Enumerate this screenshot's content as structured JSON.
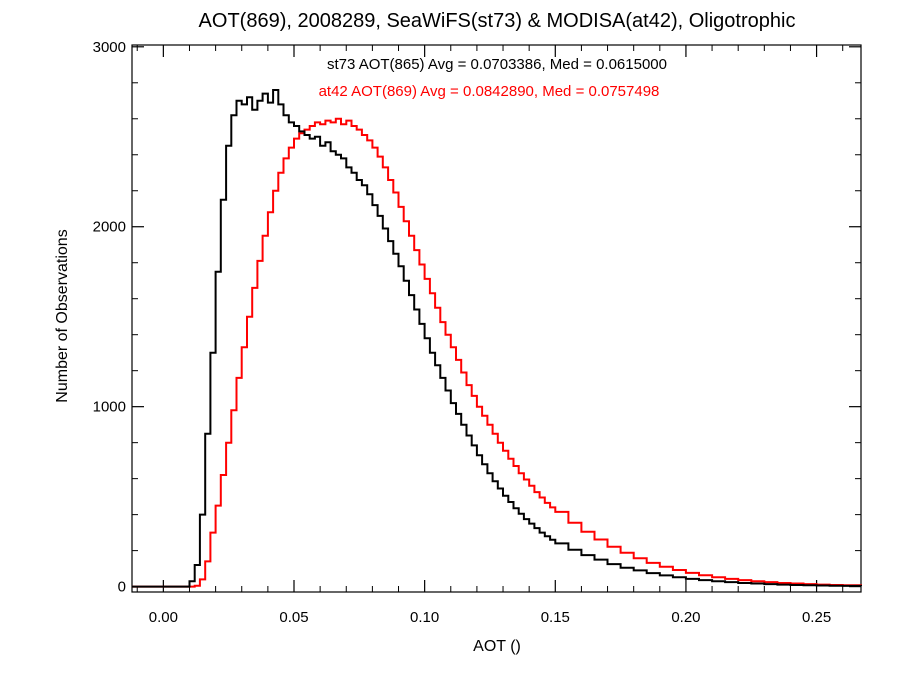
{
  "chart_data": {
    "type": "line",
    "step": true,
    "title": "AOT(869), 2008289, SeaWiFS(st73) & MODISA(at42), Oligotrophic",
    "xlabel": "AOT ()",
    "ylabel": "Number of Observations",
    "xlim": [
      -0.012,
      0.267
    ],
    "ylim": [
      -30,
      3010
    ],
    "xticks": [
      0.0,
      0.05,
      0.1,
      0.15,
      0.2,
      0.25
    ],
    "xtick_labels": [
      "0.00",
      "0.05",
      "0.10",
      "0.15",
      "0.20",
      "0.25"
    ],
    "yticks": [
      0,
      1000,
      2000,
      3000
    ],
    "ytick_labels": [
      "0",
      "1000",
      "2000",
      "3000"
    ],
    "grid": false,
    "annotations": [
      {
        "text": "st73 AOT(865) Avg = 0.0703386, Med = 0.0615000",
        "color": "#000000"
      },
      {
        "text": "at42 AOT(869) Avg = 0.0842890, Med = 0.0757498",
        "color": "#ff0000"
      }
    ],
    "series": [
      {
        "color": "#000000",
        "points": [
          [
            -0.012,
            0
          ],
          [
            0.008,
            0
          ],
          [
            0.01,
            30
          ],
          [
            0.012,
            120
          ],
          [
            0.014,
            400
          ],
          [
            0.016,
            850
          ],
          [
            0.018,
            1300
          ],
          [
            0.02,
            1750
          ],
          [
            0.022,
            2150
          ],
          [
            0.024,
            2450
          ],
          [
            0.026,
            2620
          ],
          [
            0.028,
            2700
          ],
          [
            0.03,
            2680
          ],
          [
            0.032,
            2720
          ],
          [
            0.034,
            2650
          ],
          [
            0.036,
            2700
          ],
          [
            0.038,
            2740
          ],
          [
            0.04,
            2690
          ],
          [
            0.042,
            2760
          ],
          [
            0.044,
            2680
          ],
          [
            0.046,
            2620
          ],
          [
            0.048,
            2580
          ],
          [
            0.05,
            2560
          ],
          [
            0.052,
            2530
          ],
          [
            0.054,
            2510
          ],
          [
            0.056,
            2490
          ],
          [
            0.058,
            2500
          ],
          [
            0.06,
            2450
          ],
          [
            0.062,
            2470
          ],
          [
            0.064,
            2420
          ],
          [
            0.066,
            2400
          ],
          [
            0.068,
            2380
          ],
          [
            0.07,
            2330
          ],
          [
            0.072,
            2300
          ],
          [
            0.074,
            2260
          ],
          [
            0.076,
            2230
          ],
          [
            0.078,
            2180
          ],
          [
            0.08,
            2120
          ],
          [
            0.082,
            2060
          ],
          [
            0.084,
            1990
          ],
          [
            0.086,
            1920
          ],
          [
            0.088,
            1850
          ],
          [
            0.09,
            1780
          ],
          [
            0.092,
            1700
          ],
          [
            0.094,
            1620
          ],
          [
            0.096,
            1540
          ],
          [
            0.098,
            1460
          ],
          [
            0.1,
            1380
          ],
          [
            0.102,
            1300
          ],
          [
            0.104,
            1230
          ],
          [
            0.106,
            1160
          ],
          [
            0.108,
            1090
          ],
          [
            0.11,
            1020
          ],
          [
            0.112,
            960
          ],
          [
            0.114,
            900
          ],
          [
            0.116,
            840
          ],
          [
            0.118,
            785
          ],
          [
            0.12,
            730
          ],
          [
            0.122,
            680
          ],
          [
            0.124,
            630
          ],
          [
            0.126,
            585
          ],
          [
            0.128,
            545
          ],
          [
            0.13,
            505
          ],
          [
            0.132,
            470
          ],
          [
            0.134,
            435
          ],
          [
            0.136,
            405
          ],
          [
            0.138,
            375
          ],
          [
            0.14,
            350
          ],
          [
            0.142,
            325
          ],
          [
            0.144,
            300
          ],
          [
            0.146,
            280
          ],
          [
            0.148,
            260
          ],
          [
            0.15,
            240
          ],
          [
            0.155,
            205
          ],
          [
            0.16,
            175
          ],
          [
            0.165,
            150
          ],
          [
            0.17,
            125
          ],
          [
            0.175,
            105
          ],
          [
            0.18,
            90
          ],
          [
            0.185,
            75
          ],
          [
            0.19,
            62
          ],
          [
            0.195,
            52
          ],
          [
            0.2,
            43
          ],
          [
            0.205,
            36
          ],
          [
            0.21,
            30
          ],
          [
            0.215,
            25
          ],
          [
            0.22,
            20
          ],
          [
            0.225,
            17
          ],
          [
            0.23,
            14
          ],
          [
            0.235,
            11
          ],
          [
            0.24,
            9
          ],
          [
            0.245,
            7
          ],
          [
            0.25,
            6
          ],
          [
            0.255,
            5
          ],
          [
            0.26,
            4
          ],
          [
            0.267,
            3
          ]
        ]
      },
      {
        "color": "#ff0000",
        "points": [
          [
            -0.012,
            0
          ],
          [
            0.01,
            0
          ],
          [
            0.012,
            5
          ],
          [
            0.014,
            40
          ],
          [
            0.016,
            140
          ],
          [
            0.018,
            300
          ],
          [
            0.02,
            450
          ],
          [
            0.022,
            620
          ],
          [
            0.024,
            800
          ],
          [
            0.026,
            980
          ],
          [
            0.028,
            1160
          ],
          [
            0.03,
            1330
          ],
          [
            0.032,
            1500
          ],
          [
            0.034,
            1660
          ],
          [
            0.036,
            1810
          ],
          [
            0.038,
            1950
          ],
          [
            0.04,
            2080
          ],
          [
            0.042,
            2200
          ],
          [
            0.044,
            2300
          ],
          [
            0.046,
            2380
          ],
          [
            0.048,
            2440
          ],
          [
            0.05,
            2490
          ],
          [
            0.052,
            2520
          ],
          [
            0.054,
            2540
          ],
          [
            0.056,
            2560
          ],
          [
            0.058,
            2580
          ],
          [
            0.06,
            2570
          ],
          [
            0.062,
            2590
          ],
          [
            0.064,
            2580
          ],
          [
            0.066,
            2600
          ],
          [
            0.068,
            2570
          ],
          [
            0.07,
            2590
          ],
          [
            0.072,
            2560
          ],
          [
            0.074,
            2540
          ],
          [
            0.076,
            2510
          ],
          [
            0.078,
            2480
          ],
          [
            0.08,
            2440
          ],
          [
            0.082,
            2390
          ],
          [
            0.084,
            2330
          ],
          [
            0.086,
            2260
          ],
          [
            0.088,
            2190
          ],
          [
            0.09,
            2110
          ],
          [
            0.092,
            2030
          ],
          [
            0.094,
            1950
          ],
          [
            0.096,
            1870
          ],
          [
            0.098,
            1790
          ],
          [
            0.1,
            1710
          ],
          [
            0.102,
            1630
          ],
          [
            0.104,
            1550
          ],
          [
            0.106,
            1470
          ],
          [
            0.108,
            1400
          ],
          [
            0.11,
            1330
          ],
          [
            0.112,
            1260
          ],
          [
            0.114,
            1190
          ],
          [
            0.116,
            1120
          ],
          [
            0.118,
            1060
          ],
          [
            0.12,
            1000
          ],
          [
            0.122,
            950
          ],
          [
            0.124,
            900
          ],
          [
            0.126,
            850
          ],
          [
            0.128,
            800
          ],
          [
            0.13,
            755
          ],
          [
            0.132,
            710
          ],
          [
            0.134,
            670
          ],
          [
            0.136,
            630
          ],
          [
            0.138,
            595
          ],
          [
            0.14,
            560
          ],
          [
            0.142,
            525
          ],
          [
            0.144,
            495
          ],
          [
            0.146,
            465
          ],
          [
            0.148,
            440
          ],
          [
            0.15,
            415
          ],
          [
            0.155,
            355
          ],
          [
            0.16,
            305
          ],
          [
            0.165,
            262
          ],
          [
            0.17,
            222
          ],
          [
            0.175,
            188
          ],
          [
            0.18,
            158
          ],
          [
            0.185,
            132
          ],
          [
            0.19,
            110
          ],
          [
            0.195,
            92
          ],
          [
            0.2,
            76
          ],
          [
            0.205,
            63
          ],
          [
            0.21,
            52
          ],
          [
            0.215,
            43
          ],
          [
            0.22,
            36
          ],
          [
            0.225,
            30
          ],
          [
            0.23,
            25
          ],
          [
            0.235,
            20
          ],
          [
            0.24,
            17
          ],
          [
            0.245,
            14
          ],
          [
            0.25,
            11
          ],
          [
            0.255,
            9
          ],
          [
            0.26,
            7
          ],
          [
            0.267,
            5
          ]
        ]
      }
    ]
  }
}
